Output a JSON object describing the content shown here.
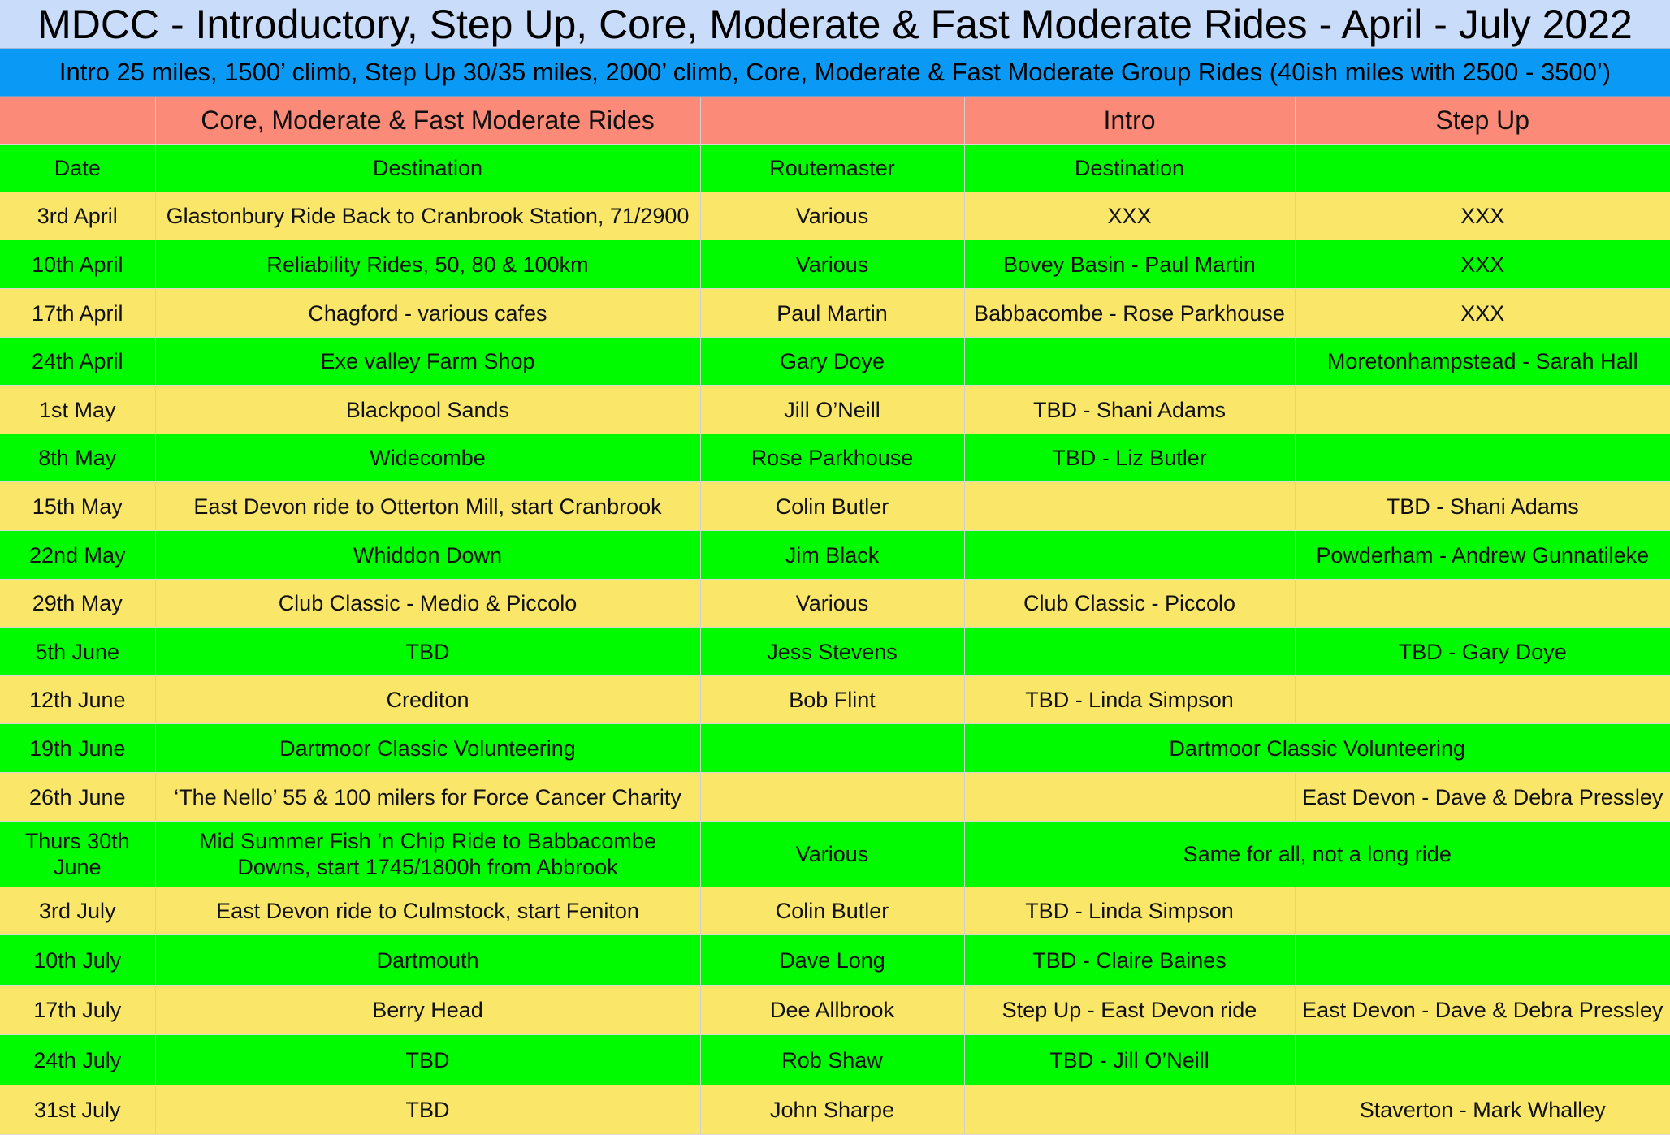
{
  "title": "MDCC - Introductory, Step Up, Core, Moderate & Fast Moderate Rides - April - July 2022",
  "subtitle": "Intro 25 miles, 1500’ climb, Step Up 30/35 miles, 2000’ climb, Core, Moderate & Fast Moderate Group Rides (40ish miles with 2500 - 3500’)",
  "colors": {
    "title_bg": "#c9ddfb",
    "subtitle_bg": "#0a9af5",
    "section_header_bg": "#fc8a78",
    "row_green": "#00fa00",
    "row_yellow": "#fae76a"
  },
  "section_headers": {
    "core": "Core, Moderate & Fast Moderate Rides",
    "intro": "Intro",
    "step_up": "Step Up"
  },
  "column_headers": {
    "date": "Date",
    "destination": "Destination",
    "routemaster": "Routemaster",
    "intro_destination": "Destination"
  },
  "rows": [
    {
      "date": "3rd April",
      "destination": "Glastonbury Ride Back to Cranbrook Station, 71/2900",
      "routemaster": "Various",
      "intro": "XXX",
      "step_up": "XXX"
    },
    {
      "date": "10th April",
      "destination": "Reliability Rides, 50, 80 & 100km",
      "routemaster": "Various",
      "intro": "Bovey Basin - Paul Martin",
      "step_up": "XXX"
    },
    {
      "date": "17th April",
      "destination": "Chagford - various cafes",
      "routemaster": "Paul Martin",
      "intro": "Babbacombe - Rose Parkhouse",
      "step_up": "XXX"
    },
    {
      "date": "24th April",
      "destination": "Exe valley Farm Shop",
      "routemaster": "Gary Doye",
      "intro": "",
      "step_up": "Moretonhampstead - Sarah Hall"
    },
    {
      "date": "1st May",
      "destination": "Blackpool Sands",
      "routemaster": "Jill O’Neill",
      "intro": "TBD - Shani Adams",
      "step_up": ""
    },
    {
      "date": "8th May",
      "destination": "Widecombe",
      "routemaster": "Rose Parkhouse",
      "intro": "TBD - Liz Butler",
      "step_up": ""
    },
    {
      "date": "15th May",
      "destination": "East Devon ride to Otterton Mill, start Cranbrook",
      "routemaster": "Colin Butler",
      "intro": "",
      "step_up": "TBD - Shani Adams"
    },
    {
      "date": "22nd May",
      "destination": "Whiddon Down",
      "routemaster": "Jim Black",
      "intro": "",
      "step_up": "Powderham - Andrew Gunnatileke"
    },
    {
      "date": "29th May",
      "destination": "Club Classic - Medio & Piccolo",
      "routemaster": "Various",
      "intro": "Club Classic - Piccolo",
      "step_up": ""
    },
    {
      "date": "5th June",
      "destination": "TBD",
      "routemaster": "Jess Stevens",
      "intro": "",
      "step_up": "TBD - Gary Doye"
    },
    {
      "date": "12th June",
      "destination": "Crediton",
      "routemaster": "Bob Flint",
      "intro": "TBD - Linda Simpson",
      "step_up": ""
    },
    {
      "date": "19th June",
      "destination": "Dartmoor Classic Volunteering",
      "routemaster": "",
      "merged": "Dartmoor Classic Volunteering"
    },
    {
      "date": "26th June",
      "destination": "‘The Nello’ 55 & 100 milers for Force Cancer Charity",
      "routemaster": "",
      "intro": "",
      "step_up": "East Devon - Dave & Debra Pressley"
    },
    {
      "date": "Thurs 30th June",
      "destination": "Mid Summer Fish ’n Chip Ride to Babbacombe Downs, start 1745/1800h from Abbrook",
      "routemaster": "Various",
      "merged": "Same for all, not a long ride"
    },
    {
      "date": "3rd July",
      "destination": "East Devon ride to Culmstock, start Feniton",
      "routemaster": "Colin Butler",
      "intro": "TBD - Linda Simpson",
      "step_up": ""
    },
    {
      "date": "10th July",
      "destination": "Dartmouth",
      "routemaster": "Dave Long",
      "intro": "TBD - Claire Baines",
      "step_up": ""
    },
    {
      "date": "17th July",
      "destination": "Berry Head",
      "routemaster": "Dee Allbrook",
      "intro": "Step Up - East Devon ride",
      "step_up": "East Devon - Dave & Debra Pressley"
    },
    {
      "date": "24th July",
      "destination": "TBD",
      "routemaster": "Rob Shaw",
      "intro": "TBD - Jill O’Neill",
      "step_up": ""
    },
    {
      "date": "31st July",
      "destination": "TBD",
      "routemaster": "John Sharpe",
      "intro": "",
      "step_up": "Staverton - Mark Whalley"
    }
  ]
}
